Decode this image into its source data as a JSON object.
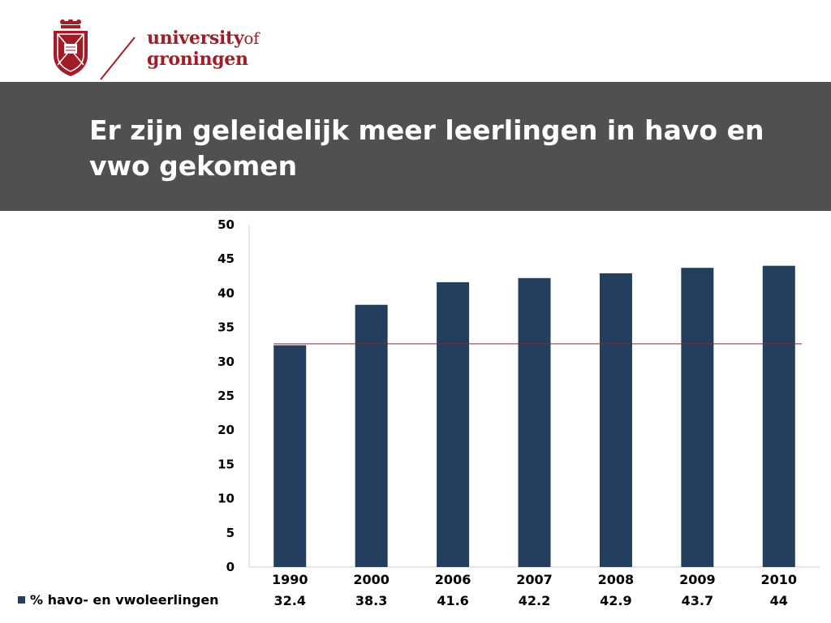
{
  "header": {
    "brand_line1": "university",
    "brand_of": "of",
    "brand_line2": "groningen",
    "brand_color": "#a01c26"
  },
  "slide": {
    "title": "Er zijn geleidelijk meer leerlingen in havo en vwo gekomen",
    "band_color": "#505050"
  },
  "chart_data": {
    "type": "bar",
    "title": "",
    "xlabel": "",
    "ylabel": "",
    "categories": [
      "1990",
      "2000",
      "2006",
      "2007",
      "2008",
      "2009",
      "2010"
    ],
    "series": [
      {
        "name": "% havo- en vwoleerlingen",
        "values": [
          32.4,
          38.3,
          41.6,
          42.2,
          42.9,
          43.7,
          44
        ],
        "color": "#243f5e"
      }
    ],
    "data_table_values": [
      "32.4",
      "38.3",
      "41.6",
      "42.2",
      "42.9",
      "43.7",
      "44"
    ],
    "ylim": [
      0,
      50
    ],
    "yticks": [
      0,
      5,
      10,
      15,
      20,
      25,
      30,
      35,
      40,
      45,
      50
    ],
    "reference_line": {
      "value": 32.6,
      "color": "#a01c26"
    },
    "grid": false,
    "legend": "bottom-left, data table"
  }
}
